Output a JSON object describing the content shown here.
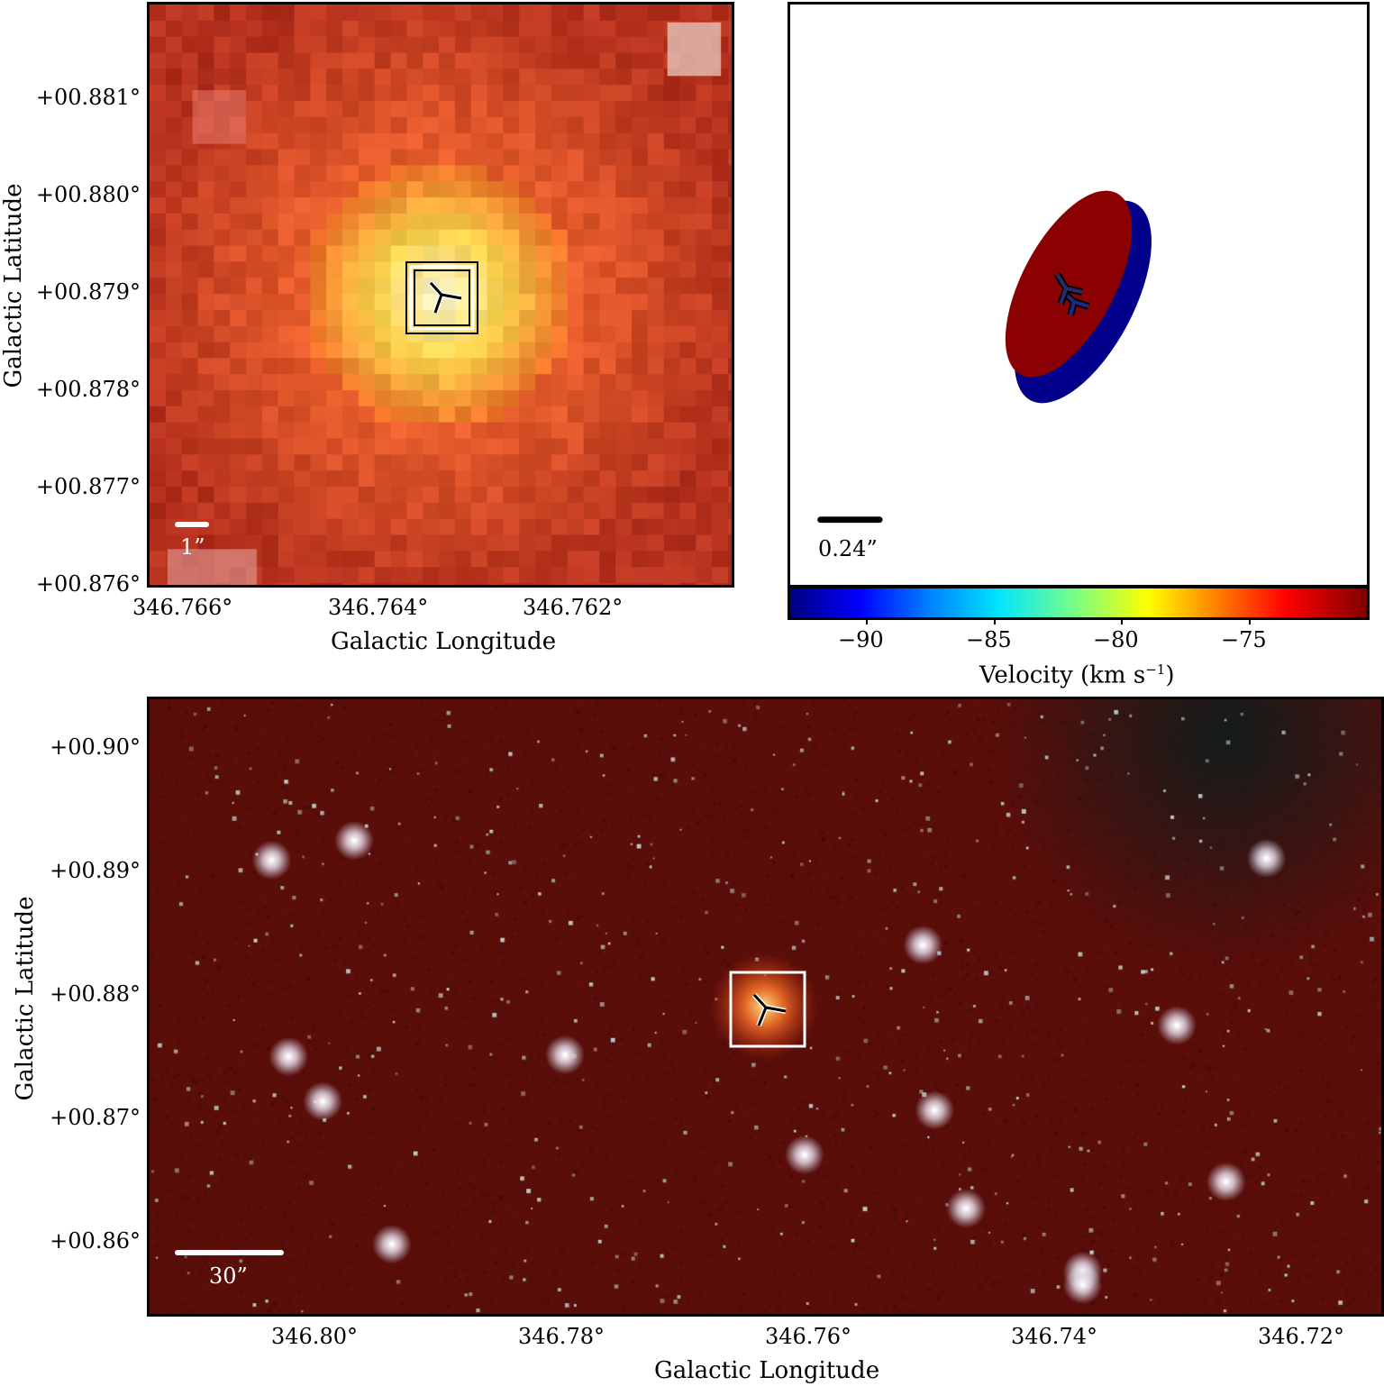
{
  "top_left": {
    "yticks": [
      "+00.881°",
      "+00.880°",
      "+00.879°",
      "+00.878°",
      "+00.877°",
      "+00.876°"
    ],
    "xticks": [
      "346.766°",
      "346.764°",
      "346.762°"
    ],
    "xlabel": "Galactic Longitude",
    "ylabel": "Galactic Latitude",
    "scalebar": "1”",
    "colors": {
      "core": "#fffbd0",
      "halo": "#f08a3a",
      "background": "#b9301c"
    }
  },
  "top_right": {
    "scalebar": "0.24”",
    "colorbar_label": "Velocity (km s−1)",
    "colorbar_label_main": "Velocity (km s",
    "colorbar_label_sup": "−1",
    "colorbar_label_end": ")",
    "colorbar_ticks": [
      "−90",
      "−85",
      "−80",
      "−75"
    ],
    "colors": {
      "red_ellipse": "#8b0000",
      "blue_ellipse": "#00008b"
    }
  },
  "bottom": {
    "yticks": [
      "+00.90°",
      "+00.89°",
      "+00.88°",
      "+00.87°",
      "+00.86°"
    ],
    "xticks": [
      "346.80°",
      "346.78°",
      "346.76°",
      "346.74°",
      "346.72°"
    ],
    "xlabel": "Galactic Longitude",
    "ylabel": "Galactic Latitude",
    "scalebar": "30”",
    "colors": {
      "background": "#5a0e0a",
      "stars": "#e6f4f0"
    }
  }
}
